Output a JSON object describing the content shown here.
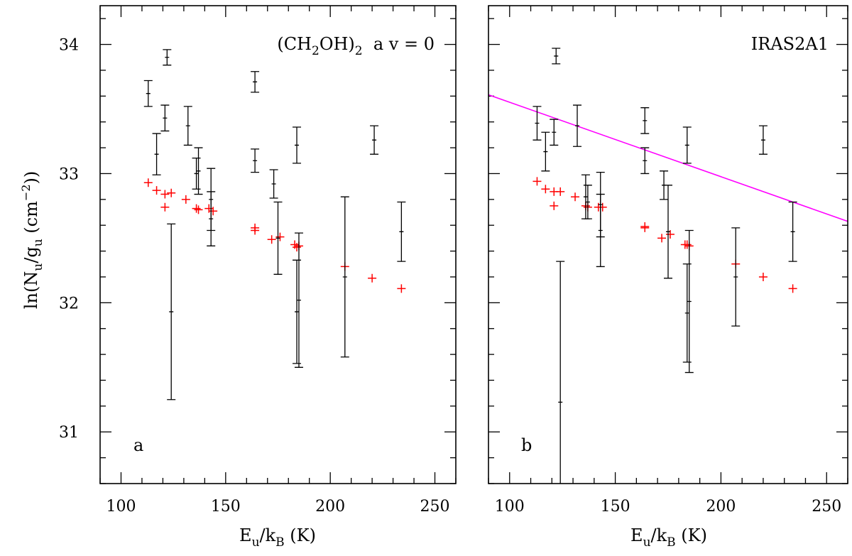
{
  "chart_data": {
    "type": "scatter",
    "y_axis_title": {
      "main": "ln(N",
      "sub1": "u",
      "mid": "/g",
      "sub2": "u",
      "unit_open": " (cm",
      "unit_exp": "−2",
      "unit_close": "))"
    },
    "x_axis_title": {
      "main": "E",
      "sub1": "u",
      "mid": "/k",
      "sub2": "B",
      "tail": " (K)"
    },
    "xlim": [
      90,
      260
    ],
    "ylim": [
      30.6,
      34.3
    ],
    "x_ticks": [
      100,
      150,
      200,
      250
    ],
    "x_tick_labels": [
      "100",
      "150",
      "200",
      "250"
    ],
    "y_ticks": [
      31,
      32,
      33,
      34
    ],
    "y_tick_labels": [
      "31",
      "32",
      "33",
      "34"
    ],
    "x_minor_step": 10,
    "y_minor_step": 0.2,
    "colors": {
      "observed": "#000000",
      "model": "#ff0000",
      "fit": "#ff00ff"
    },
    "panels": [
      {
        "label": "a",
        "title": {
          "pre": "(CH",
          "sub1": "2",
          "mid": "OH)",
          "sub2": "2",
          "post": "  a v = 0"
        },
        "show_y_labels": true,
        "observed": [
          {
            "x": 113,
            "y": 33.62,
            "err": 0.1
          },
          {
            "x": 117,
            "y": 33.15,
            "err": 0.16
          },
          {
            "x": 121,
            "y": 33.43,
            "err": 0.1
          },
          {
            "x": 122,
            "y": 33.9,
            "err": 0.06
          },
          {
            "x": 124,
            "y": 31.93,
            "err": 0.68
          },
          {
            "x": 132,
            "y": 33.37,
            "err": 0.15
          },
          {
            "x": 136,
            "y": 33.0,
            "err": 0.12
          },
          {
            "x": 137,
            "y": 33.02,
            "err": 0.18
          },
          {
            "x": 143,
            "y": 32.8,
            "err": 0.24
          },
          {
            "x": 143,
            "y": 32.65,
            "err": 0.21
          },
          {
            "x": 164,
            "y": 33.71,
            "err": 0.08
          },
          {
            "x": 164,
            "y": 33.1,
            "err": 0.09
          },
          {
            "x": 173,
            "y": 32.92,
            "err": 0.11
          },
          {
            "x": 175,
            "y": 32.5,
            "err": 0.28
          },
          {
            "x": 184,
            "y": 33.22,
            "err": 0.14
          },
          {
            "x": 184,
            "y": 31.93,
            "err": 0.4
          },
          {
            "x": 185,
            "y": 32.02,
            "err": 0.52
          },
          {
            "x": 207,
            "y": 32.2,
            "err": 0.62
          },
          {
            "x": 221,
            "y": 33.26,
            "err": 0.11
          },
          {
            "x": 234,
            "y": 32.55,
            "err": 0.23
          }
        ],
        "model": [
          {
            "x": 113,
            "y": 32.93
          },
          {
            "x": 117,
            "y": 32.87
          },
          {
            "x": 121,
            "y": 32.74
          },
          {
            "x": 121,
            "y": 32.84
          },
          {
            "x": 124,
            "y": 32.85
          },
          {
            "x": 131,
            "y": 32.8
          },
          {
            "x": 136,
            "y": 32.73
          },
          {
            "x": 137,
            "y": 32.72
          },
          {
            "x": 142,
            "y": 32.73
          },
          {
            "x": 144,
            "y": 32.71
          },
          {
            "x": 164,
            "y": 32.58
          },
          {
            "x": 164,
            "y": 32.56
          },
          {
            "x": 172,
            "y": 32.49
          },
          {
            "x": 176,
            "y": 32.51
          },
          {
            "x": 183,
            "y": 32.45
          },
          {
            "x": 184,
            "y": 32.43
          },
          {
            "x": 185,
            "y": 32.44
          },
          {
            "x": 207,
            "y": 32.28
          },
          {
            "x": 220,
            "y": 32.19
          },
          {
            "x": 234,
            "y": 32.11
          }
        ]
      },
      {
        "label": "b",
        "title": {
          "text": "IRAS2A1"
        },
        "show_y_labels": false,
        "fit_line": {
          "x": [
            90,
            260
          ],
          "y": [
            33.61,
            32.63
          ]
        },
        "observed": [
          {
            "x": 113,
            "y": 33.39,
            "err": 0.13
          },
          {
            "x": 117,
            "y": 33.17,
            "err": 0.15
          },
          {
            "x": 121,
            "y": 33.32,
            "err": 0.1
          },
          {
            "x": 122,
            "y": 33.91,
            "err": 0.06
          },
          {
            "x": 124,
            "y": 31.23,
            "err": 1.09
          },
          {
            "x": 132,
            "y": 33.37,
            "err": 0.16
          },
          {
            "x": 136,
            "y": 32.82,
            "err": 0.17
          },
          {
            "x": 137,
            "y": 32.78,
            "err": 0.13
          },
          {
            "x": 143,
            "y": 32.76,
            "err": 0.25
          },
          {
            "x": 143,
            "y": 32.56,
            "err": 0.28
          },
          {
            "x": 164,
            "y": 33.41,
            "err": 0.1
          },
          {
            "x": 164,
            "y": 33.1,
            "err": 0.1
          },
          {
            "x": 173,
            "y": 32.91,
            "err": 0.11
          },
          {
            "x": 175,
            "y": 32.55,
            "err": 0.36
          },
          {
            "x": 184,
            "y": 33.22,
            "err": 0.14
          },
          {
            "x": 184,
            "y": 31.92,
            "err": 0.38
          },
          {
            "x": 185,
            "y": 32.01,
            "err": 0.55
          },
          {
            "x": 207,
            "y": 32.2,
            "err": 0.38
          },
          {
            "x": 220,
            "y": 33.26,
            "err": 0.11
          },
          {
            "x": 234,
            "y": 32.55,
            "err": 0.23
          }
        ],
        "model": [
          {
            "x": 113,
            "y": 32.94
          },
          {
            "x": 117,
            "y": 32.88
          },
          {
            "x": 121,
            "y": 32.75
          },
          {
            "x": 121,
            "y": 32.86
          },
          {
            "x": 124,
            "y": 32.86
          },
          {
            "x": 131,
            "y": 32.82
          },
          {
            "x": 136,
            "y": 32.75
          },
          {
            "x": 137,
            "y": 32.74
          },
          {
            "x": 142,
            "y": 32.74
          },
          {
            "x": 144,
            "y": 32.74
          },
          {
            "x": 164,
            "y": 32.59
          },
          {
            "x": 164,
            "y": 32.58
          },
          {
            "x": 172,
            "y": 32.5
          },
          {
            "x": 176,
            "y": 32.53
          },
          {
            "x": 183,
            "y": 32.45
          },
          {
            "x": 184,
            "y": 32.45
          },
          {
            "x": 185,
            "y": 32.44
          },
          {
            "x": 207,
            "y": 32.3
          },
          {
            "x": 220,
            "y": 32.2
          },
          {
            "x": 234,
            "y": 32.11
          }
        ]
      }
    ]
  }
}
